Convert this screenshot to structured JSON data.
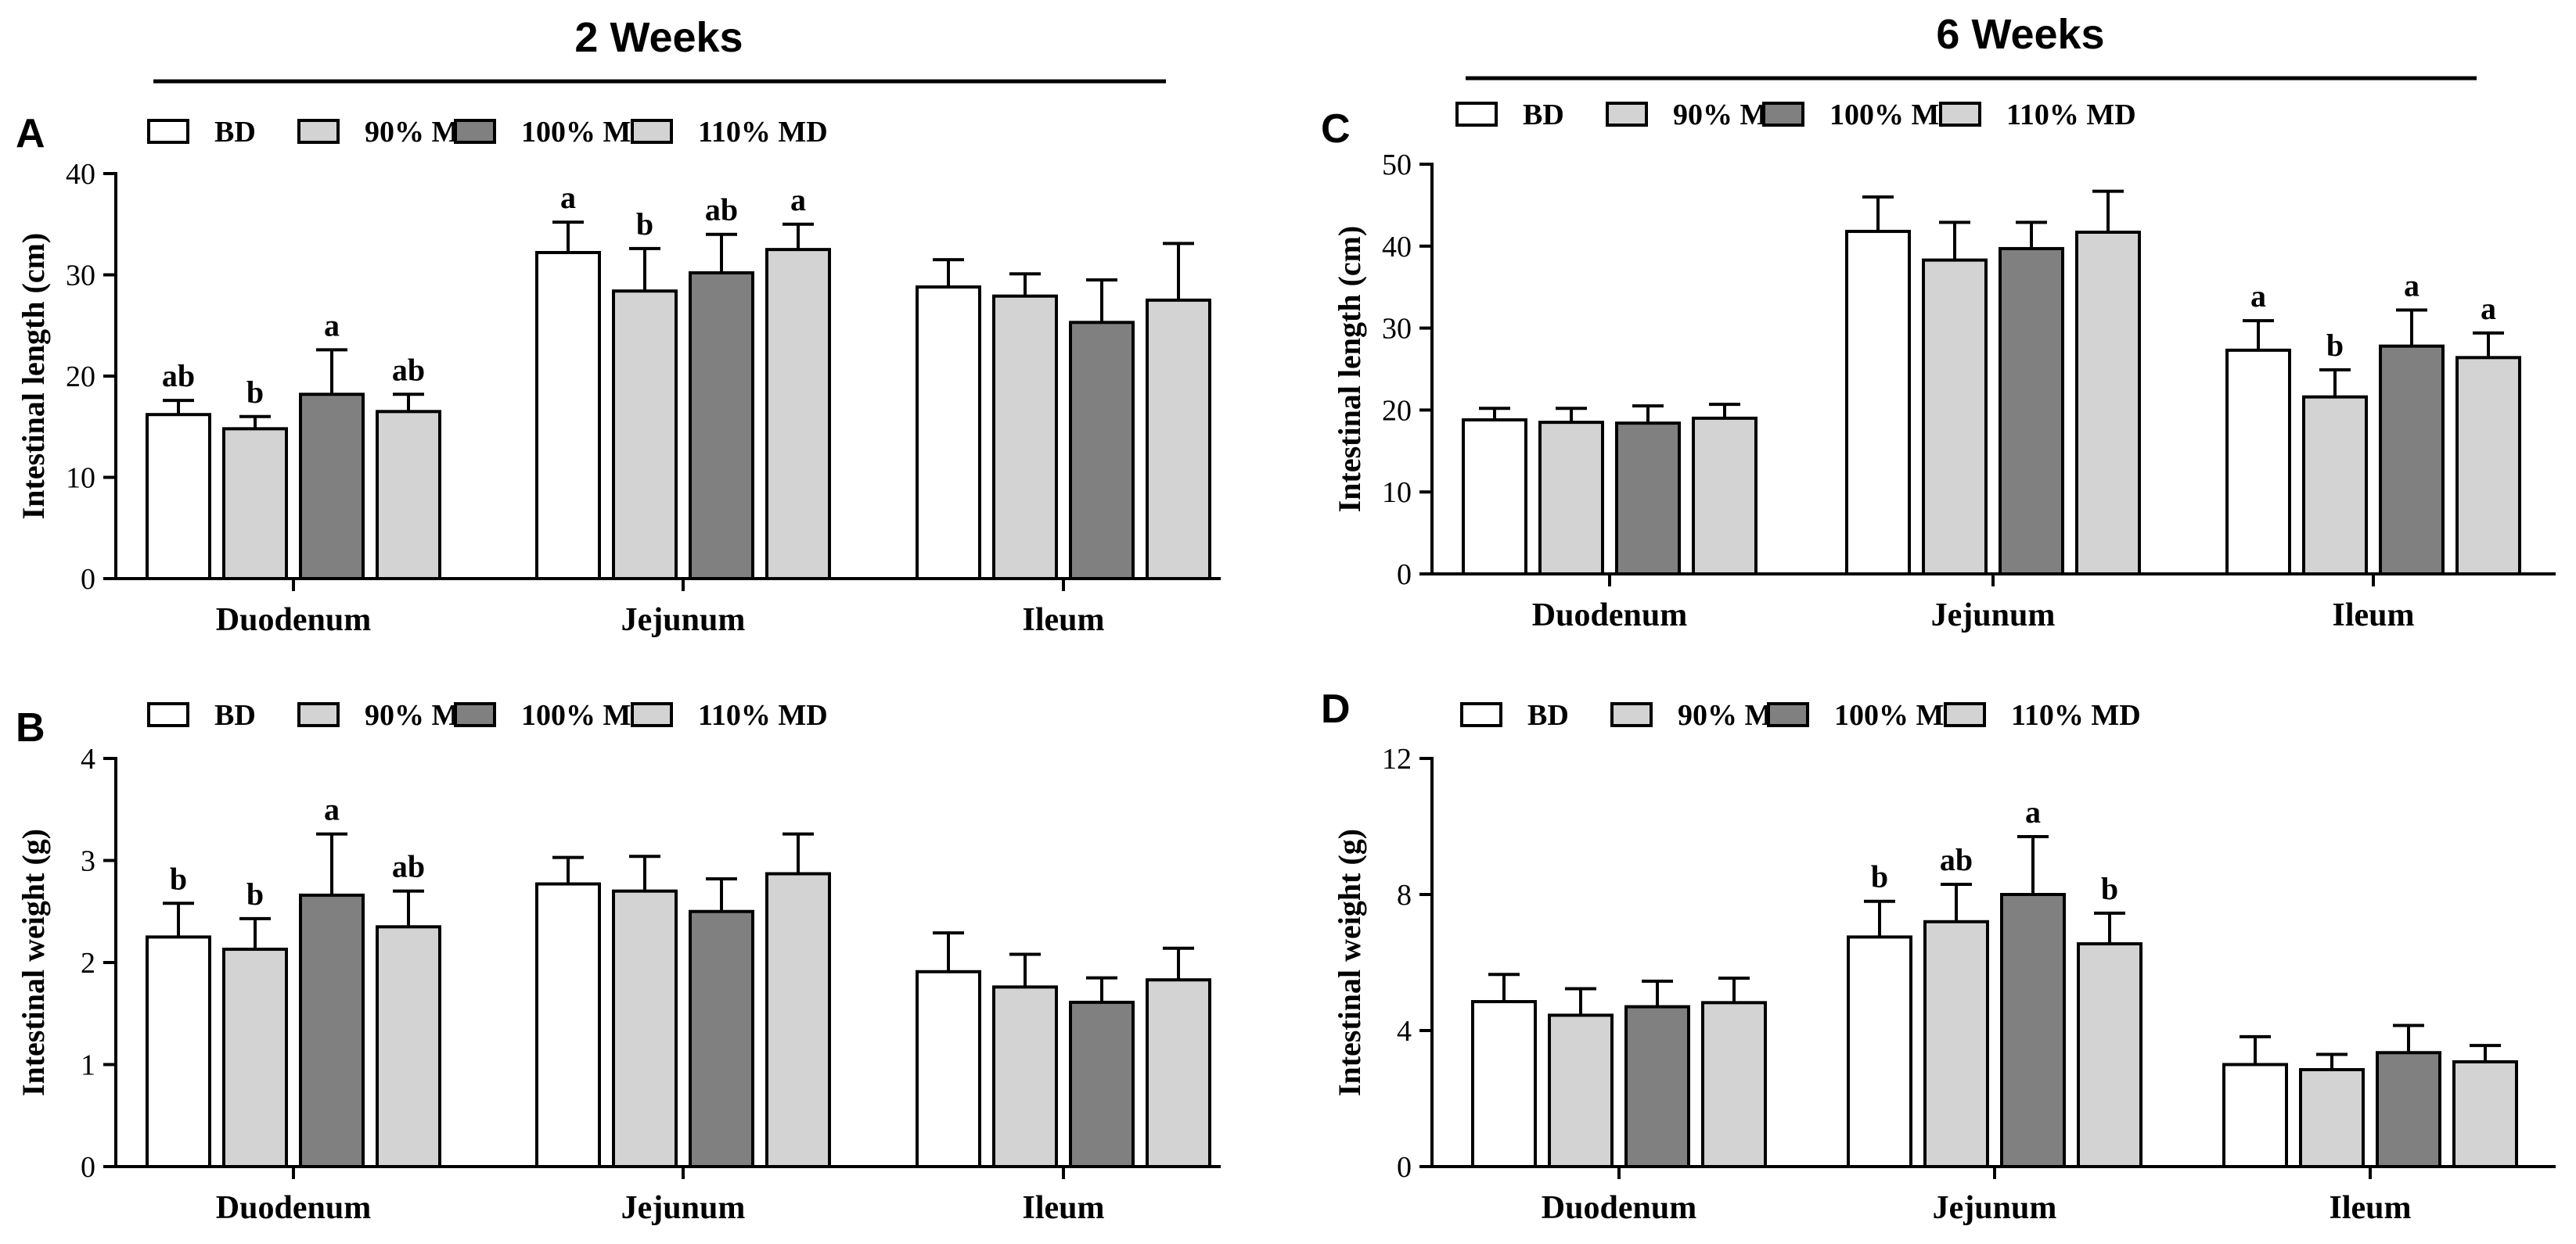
{
  "headers": {
    "left": "2 Weeks",
    "right": "6 Weeks"
  },
  "legend": {
    "items": [
      {
        "label": "BD",
        "color": "#ffffff"
      },
      {
        "label": "90% MD",
        "color": "#d3d3d3"
      },
      {
        "label": "100% MD",
        "color": "#808080"
      },
      {
        "label": "110% MD",
        "color": "#d3d3d3"
      }
    ]
  },
  "chart_data": [
    {
      "panel": "A",
      "type": "bar",
      "ylabel": "Intestinal length (cm)",
      "ylim": [
        0,
        40
      ],
      "yticks": [
        0,
        10,
        20,
        30,
        40
      ],
      "categories": [
        "Duodenum",
        "Jejunum",
        "Ileum"
      ],
      "series": [
        {
          "name": "BD",
          "values": [
            16.2,
            32.2,
            28.8
          ],
          "errors": [
            1.4,
            3.0,
            2.7
          ],
          "labels": [
            "ab",
            "a",
            ""
          ]
        },
        {
          "name": "90% MD",
          "values": [
            14.8,
            28.4,
            27.9
          ],
          "errors": [
            1.2,
            4.2,
            2.2
          ],
          "labels": [
            "b",
            "b",
            ""
          ]
        },
        {
          "name": "100% MD",
          "values": [
            18.2,
            30.2,
            25.3
          ],
          "errors": [
            4.4,
            3.8,
            4.2
          ],
          "labels": [
            "a",
            "ab",
            ""
          ]
        },
        {
          "name": "110% MD",
          "values": [
            16.5,
            32.5,
            27.5
          ],
          "errors": [
            1.7,
            2.5,
            5.6
          ],
          "labels": [
            "ab",
            "a",
            ""
          ]
        }
      ]
    },
    {
      "panel": "B",
      "type": "bar",
      "ylabel": "Intestinal weight (g)",
      "ylim": [
        0,
        4
      ],
      "yticks": [
        0,
        1,
        2,
        3,
        4
      ],
      "categories": [
        "Duodenum",
        "Jejunum",
        "Ileum"
      ],
      "series": [
        {
          "name": "BD",
          "values": [
            2.25,
            2.77,
            1.91
          ],
          "errors": [
            0.33,
            0.26,
            0.38
          ],
          "labels": [
            "b",
            "",
            ""
          ]
        },
        {
          "name": "90% MD",
          "values": [
            2.13,
            2.7,
            1.76
          ],
          "errors": [
            0.3,
            0.34,
            0.32
          ],
          "labels": [
            "b",
            "",
            ""
          ]
        },
        {
          "name": "100% MD",
          "values": [
            2.66,
            2.5,
            1.61
          ],
          "errors": [
            0.6,
            0.32,
            0.24
          ],
          "labels": [
            "a",
            "",
            ""
          ]
        },
        {
          "name": "110% MD",
          "values": [
            2.35,
            2.87,
            1.83
          ],
          "errors": [
            0.35,
            0.39,
            0.31
          ],
          "labels": [
            "ab",
            "",
            ""
          ]
        }
      ]
    },
    {
      "panel": "C",
      "type": "bar",
      "ylabel": "Intestinal length (cm)",
      "ylim": [
        0,
        50
      ],
      "yticks": [
        0,
        10,
        20,
        30,
        40,
        50
      ],
      "categories": [
        "Duodenum",
        "Jejunum",
        "Ileum"
      ],
      "series": [
        {
          "name": "BD",
          "values": [
            18.8,
            41.8,
            27.3
          ],
          "errors": [
            1.4,
            4.2,
            3.6
          ],
          "labels": [
            "",
            "",
            "a"
          ]
        },
        {
          "name": "90% MD",
          "values": [
            18.5,
            38.3,
            21.6
          ],
          "errors": [
            1.7,
            4.6,
            3.3
          ],
          "labels": [
            "",
            "",
            "b"
          ]
        },
        {
          "name": "100% MD",
          "values": [
            18.4,
            39.7,
            27.8
          ],
          "errors": [
            2.1,
            3.2,
            4.4
          ],
          "labels": [
            "",
            "",
            "a"
          ]
        },
        {
          "name": "110% MD",
          "values": [
            19.0,
            41.7,
            26.4
          ],
          "errors": [
            1.7,
            5.0,
            3.0
          ],
          "labels": [
            "",
            "",
            "a"
          ]
        }
      ]
    },
    {
      "panel": "D",
      "type": "bar",
      "ylabel": "Intestinal weight (g)",
      "ylim": [
        0,
        12
      ],
      "yticks": [
        0,
        4,
        8,
        12
      ],
      "categories": [
        "Duodenum",
        "Jejunum",
        "Ileum"
      ],
      "series": [
        {
          "name": "BD",
          "values": [
            4.85,
            6.75,
            3.0
          ],
          "errors": [
            0.8,
            1.05,
            0.82
          ],
          "labels": [
            "",
            "b",
            ""
          ]
        },
        {
          "name": "90% MD",
          "values": [
            4.45,
            7.2,
            2.85
          ],
          "errors": [
            0.78,
            1.1,
            0.45
          ],
          "labels": [
            "",
            "ab",
            ""
          ]
        },
        {
          "name": "100% MD",
          "values": [
            4.7,
            8.0,
            3.35
          ],
          "errors": [
            0.75,
            1.7,
            0.8
          ],
          "labels": [
            "",
            "a",
            ""
          ]
        },
        {
          "name": "110% MD",
          "values": [
            4.82,
            6.55,
            3.08
          ],
          "errors": [
            0.72,
            0.9,
            0.48
          ],
          "labels": [
            "",
            "b",
            ""
          ]
        }
      ]
    }
  ]
}
